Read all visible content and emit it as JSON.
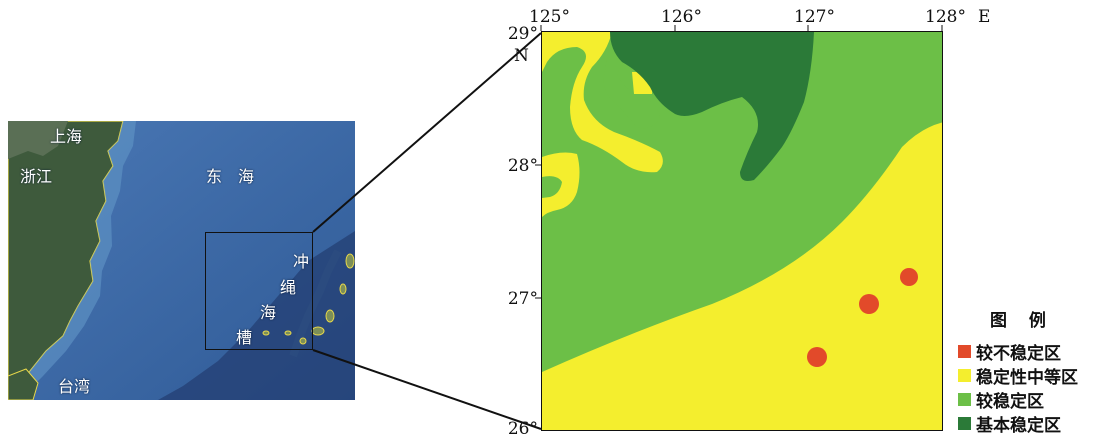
{
  "overview": {
    "labels": {
      "shanghai": "上海",
      "zhejiang": "浙江",
      "east_sea": "东　海",
      "okinawa_1": "冲",
      "okinawa_2": "绳",
      "okinawa_3": "海",
      "okinawa_4": "槽",
      "taiwan": "台湾"
    }
  },
  "detail": {
    "longitude_ticks": [
      "125°",
      "126°",
      "127°",
      "128°"
    ],
    "longitude_unit": "E",
    "latitude_ticks": [
      "29°",
      "28°",
      "27°",
      "26°"
    ],
    "latitude_unit": "N"
  },
  "legend": {
    "title": "图 例",
    "items": [
      {
        "label": "较不稳定区",
        "color": "#e24a2a"
      },
      {
        "label": "稳定性中等区",
        "color": "#f4ee2e"
      },
      {
        "label": "较稳定区",
        "color": "#6cbf47"
      },
      {
        "label": "基本稳定区",
        "color": "#2b7a38"
      }
    ]
  },
  "colors": {
    "ocean": "#3d6aa8",
    "land": "#3e5a3c",
    "coast_outline": "#e8d84a"
  }
}
